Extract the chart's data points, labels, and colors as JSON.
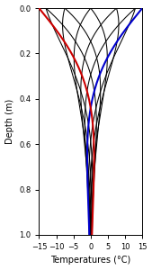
{
  "title": "",
  "xlabel": "Temperatures (°C)",
  "ylabel": "Depth (m)",
  "xlim": [
    -15,
    15
  ],
  "ylim": [
    0,
    1.0
  ],
  "n_depths": 500,
  "amplitude": 15.0,
  "damping_depth": 0.28,
  "n_curves": 12,
  "red_time_index": 6,
  "blue_time_index": 0,
  "background_color": "#ffffff",
  "line_color_black": "#000000",
  "line_color_red": "#cc0000",
  "line_color_blue": "#0000cc",
  "linewidth_black": 0.75,
  "linewidth_colored": 1.5,
  "xticks": [
    -15,
    -10,
    -5,
    0,
    5,
    10,
    15
  ],
  "yticks": [
    0,
    0.2,
    0.4,
    0.6,
    0.8,
    1.0
  ],
  "xlabel_fontsize": 7,
  "ylabel_fontsize": 7,
  "tick_labelsize": 6
}
